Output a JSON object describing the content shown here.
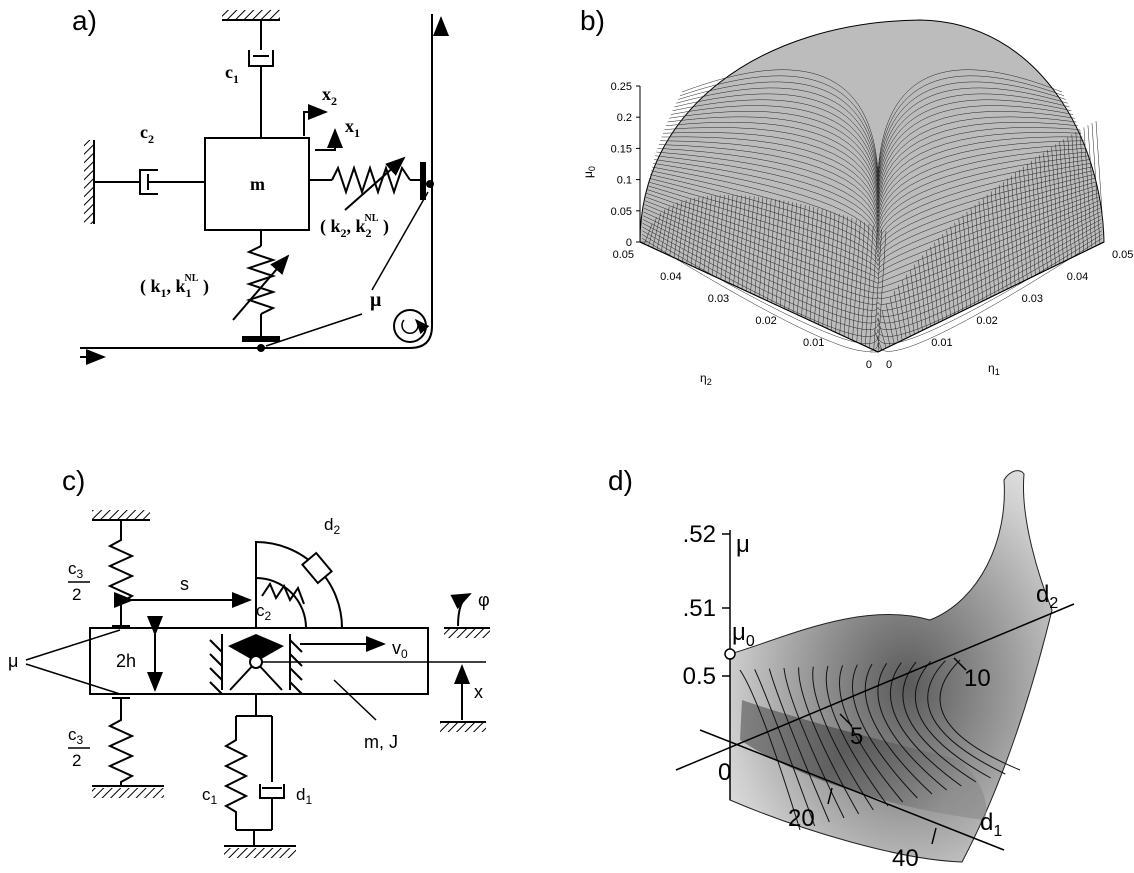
{
  "panels": {
    "a": {
      "label": "a)",
      "c1": "c",
      "c1_sub": "1",
      "c2": "c",
      "c2_sub": "2",
      "x2": "x",
      "x2_sub": "2",
      "x1": "x",
      "x1_sub": "1",
      "m": "m",
      "k2_label_open": "( k",
      "k2_sub": "2",
      "k2_sep": ", k",
      "k2_nl_sub": "2",
      "k2_nl_sup": "NL",
      "k2_close": " )",
      "k1_label_open": "( k",
      "k1_sub": "1",
      "k1_sep": ", k",
      "k1_nl_sub": "1",
      "k1_nl_sup": "NL",
      "k1_close": " )",
      "mu": "μ"
    },
    "b": {
      "label": "b)",
      "z_axis": "μ",
      "z_axis_sub": "0",
      "z_ticks": [
        "0.25",
        "0.2",
        "0.15",
        "0.1",
        "0.05",
        "0"
      ],
      "left_axis": "η",
      "left_axis_sub": "2",
      "right_axis": "η",
      "right_axis_sub": "1",
      "left_ticks": [
        "0.05",
        "0.04",
        "0.03",
        "0.02",
        "0.01",
        "0"
      ],
      "right_ticks": [
        "0",
        "0.01",
        "0.02",
        "0.03",
        "0.04",
        "0.05"
      ]
    },
    "c": {
      "label": "c)",
      "c3_top_num": "c",
      "c3_top_sub": "3",
      "c3_top_den": "2",
      "c3_bot_num": "c",
      "c3_bot_sub": "3",
      "c3_bot_den": "2",
      "s": "s",
      "d2": "d",
      "d2_sub": "2",
      "c2": "c",
      "c2_sub": "2",
      "phi": "φ",
      "mu": "μ",
      "h": "2h",
      "v0": "v",
      "v0_sub": "0",
      "x": "x",
      "mJ": "m, J",
      "c1": "c",
      "c1_sub": "1",
      "d1": "d",
      "d1_sub": "1"
    },
    "d": {
      "label": "d)",
      "mu_axis": "μ",
      "mu0": "μ",
      "mu0_sub": "0",
      "mu_ticks": [
        ".52",
        ".51",
        "0.5"
      ],
      "d2_axis": "d",
      "d2_axis_sub": "2",
      "d2_ticks": [
        "5",
        "10"
      ],
      "d1_axis": "d",
      "d1_axis_sub": "1",
      "d1_ticks": [
        "20",
        "40"
      ],
      "origin": "0"
    }
  }
}
